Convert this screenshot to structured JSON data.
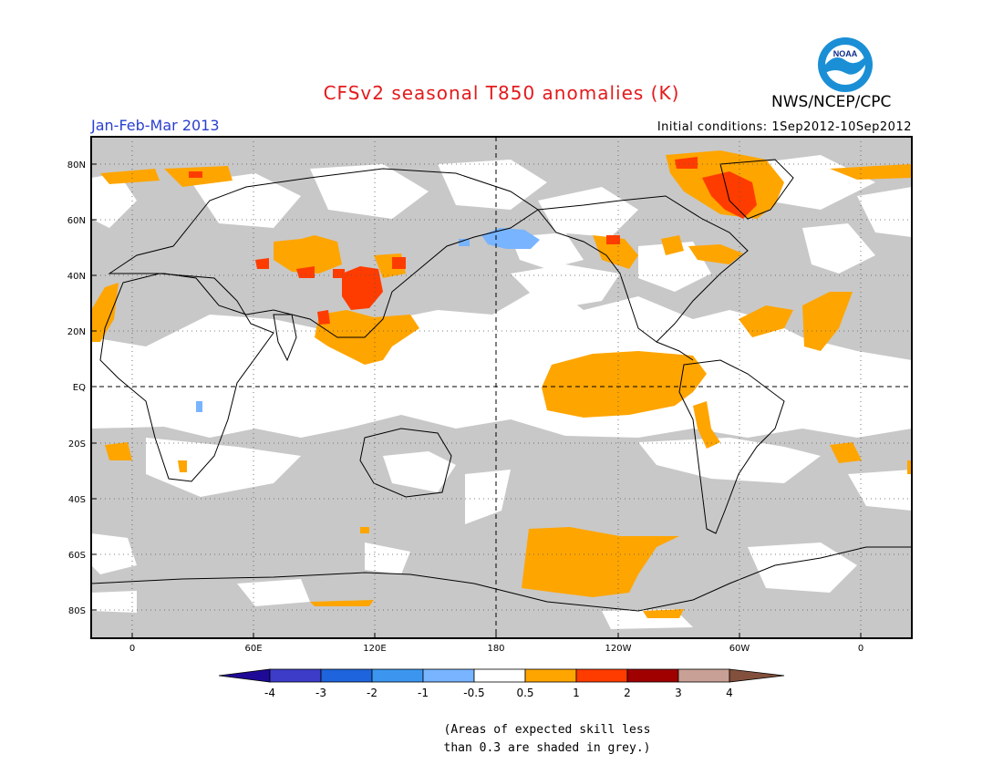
{
  "header": {
    "title": "CFSv2 seasonal T850 anomalies (K)",
    "period": "Jan-Feb-Mar 2013",
    "agency": "NWS/NCEP/CPC",
    "initial_conditions": "Initial conditions: 1Sep2012-10Sep2012",
    "logo_text": "NOAA"
  },
  "map": {
    "lat_ticks": [
      "80N",
      "60N",
      "40N",
      "20N",
      "EQ",
      "20S",
      "40S",
      "60S",
      "80S"
    ],
    "lon_ticks": [
      "0",
      "60E",
      "120E",
      "180",
      "120W",
      "60W",
      "0"
    ],
    "skill_mask_color": "#c8c8c8",
    "ocean_land_bg": "#ffffff",
    "anomaly_colors": {
      "light_orange": "#ffa500",
      "red_orange": "#ff3c00",
      "light_blue": "#78b4ff"
    }
  },
  "colorbar": {
    "labels": [
      "-4",
      "-3",
      "-2",
      "-1",
      "-0.5",
      "0.5",
      "1",
      "2",
      "3",
      "4"
    ],
    "colors": [
      "#1e0a96",
      "#3c3cc8",
      "#1e64dc",
      "#3c96f0",
      "#78b4ff",
      "#ffffff",
      "#ffa500",
      "#ff3c00",
      "#a00000",
      "#c8a096",
      "#82503c"
    ]
  },
  "note": {
    "line1": "(Areas of expected skill less",
    "line2": "than 0.3 are shaded in grey.)"
  }
}
